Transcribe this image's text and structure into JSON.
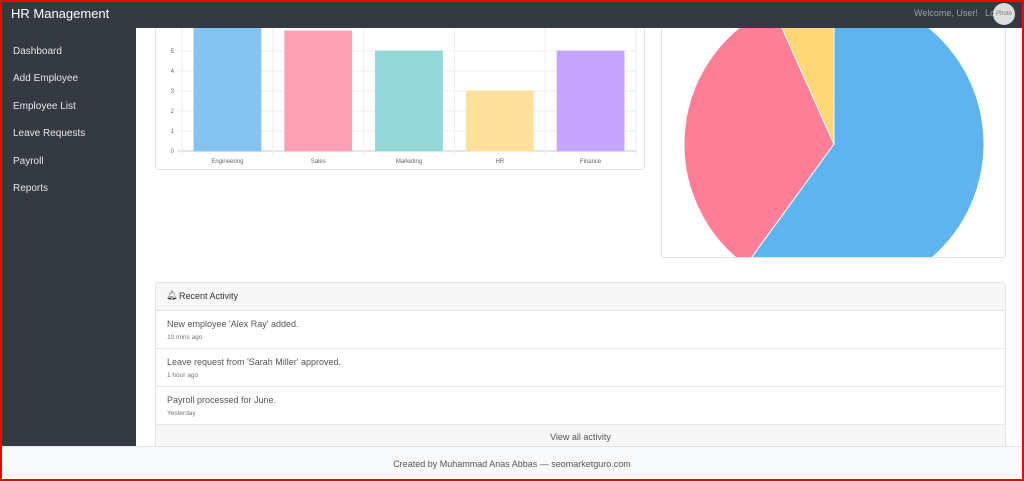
{
  "navbar": {
    "brand": "HR Management",
    "welcome": "Welcome, User!",
    "logout": "Lo",
    "avatar": "Photo"
  },
  "sidebar": {
    "items": [
      {
        "label": "Dashboard"
      },
      {
        "label": "Add Employee"
      },
      {
        "label": "Employee List"
      },
      {
        "label": "Leave Requests"
      },
      {
        "label": "Payroll"
      },
      {
        "label": "Reports"
      }
    ]
  },
  "chart_data": [
    {
      "type": "bar",
      "categories": [
        "Engineering",
        "Sales",
        "Marketing",
        "HR",
        "Finance"
      ],
      "values": [
        7,
        6,
        5,
        3,
        5
      ],
      "colors": [
        "#85c4f2",
        "#ffa1b4",
        "#94d9d8",
        "#ffe19d",
        "#c5a5ff"
      ],
      "yticks": [
        0,
        1,
        2,
        3,
        4,
        5
      ],
      "grid": true
    },
    {
      "type": "pie",
      "values": [
        60,
        33.3,
        6.7
      ],
      "colors": [
        "#5db4ef",
        "#ff7f98",
        "#ffd777"
      ]
    }
  ],
  "activity": {
    "title": "Recent Activity",
    "items": [
      {
        "text": "New employee 'Alex Ray' added.",
        "time": "10 mins ago"
      },
      {
        "text": "Leave request from 'Sarah Miller' approved.",
        "time": "1 hour ago"
      },
      {
        "text": "Payroll processed for June.",
        "time": "Yesterday"
      }
    ],
    "view_all": "View all activity"
  },
  "footer": {
    "text": "Created by Muhammad Anas Abbas — seomarketguro.com"
  }
}
